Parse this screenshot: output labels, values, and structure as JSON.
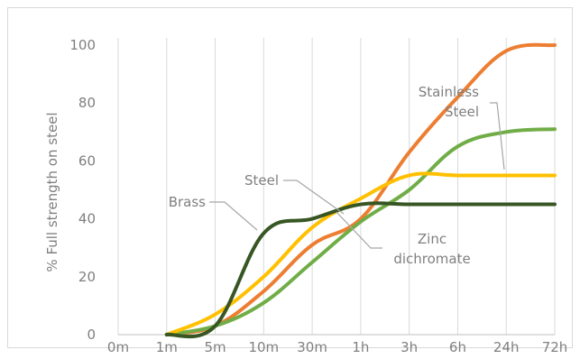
{
  "chart_data": {
    "type": "line",
    "title": "",
    "xlabel": "",
    "ylabel": "% Full strength on steel",
    "categories": [
      "0m",
      "1m",
      "5m",
      "10m",
      "30m",
      "1h",
      "3h",
      "6h",
      "24h",
      "72h"
    ],
    "ylim": [
      0,
      100
    ],
    "yticks": [
      0,
      20,
      40,
      60,
      80,
      100
    ],
    "grid": "vertical",
    "legend": "none",
    "series": [
      {
        "name": "Brass",
        "color": "#375623",
        "values": [
          null,
          0,
          3,
          35,
          40,
          45,
          45,
          45,
          45,
          45
        ]
      },
      {
        "name": "Steel",
        "color": "#ffc000",
        "values": [
          null,
          0,
          7,
          20,
          37,
          47,
          55,
          55,
          55,
          55
        ]
      },
      {
        "name": "Zinc dichromate",
        "color": "#70ad47",
        "values": [
          null,
          0,
          3,
          11,
          25,
          39,
          50,
          65,
          70,
          71
        ]
      },
      {
        "name": "Stainless Steel",
        "color": "#ed7d31",
        "values": [
          null,
          0,
          3,
          15,
          31,
          40,
          63,
          82,
          98,
          100
        ]
      }
    ],
    "annotations": [
      {
        "series": "Brass",
        "lines": [
          "Brass"
        ]
      },
      {
        "series": "Steel",
        "lines": [
          "Steel"
        ]
      },
      {
        "series": "Zinc dichromate",
        "lines": [
          "Zinc",
          "dichromate"
        ]
      },
      {
        "series": "Stainless Steel",
        "lines": [
          "Stainless",
          "Steel"
        ]
      }
    ]
  }
}
